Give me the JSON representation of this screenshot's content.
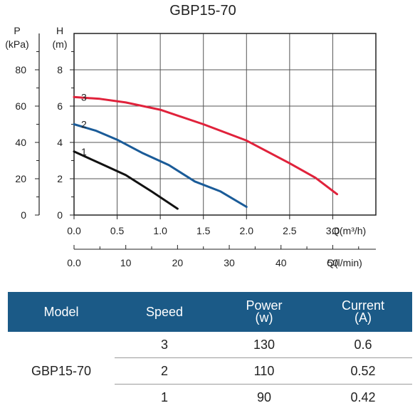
{
  "chart_data": {
    "type": "line",
    "title": "GBP15-70",
    "left_axis_label_line1": "P",
    "left_axis_label_line2": "(kPa)",
    "left_ticks": [
      "0",
      "20",
      "40",
      "60",
      "80"
    ],
    "y_axis_label_line1": "H",
    "y_axis_label_line2": "(m)",
    "y_ticks": [
      "0",
      "2",
      "4",
      "6",
      "8"
    ],
    "ylim": [
      0,
      10
    ],
    "x_axis_label": "Q(m³/h)",
    "x_ticks": [
      "0.0",
      "0.5",
      "1.0",
      "1.5",
      "2.0",
      "2.5",
      "3.0"
    ],
    "xlim": [
      0,
      3.5
    ],
    "x2_axis_label": "Q(l/min)",
    "x2_ticks": [
      "0.0",
      "10",
      "20",
      "30",
      "40",
      "50"
    ],
    "grid": true,
    "series": [
      {
        "name": "1",
        "color": "#111111",
        "points": [
          [
            0,
            3.5
          ],
          [
            0.3,
            2.85
          ],
          [
            0.6,
            2.2
          ],
          [
            0.9,
            1.3
          ],
          [
            1.2,
            0.35
          ]
        ]
      },
      {
        "name": "2",
        "color": "#1a5b98",
        "points": [
          [
            0,
            5.0
          ],
          [
            0.25,
            4.65
          ],
          [
            0.5,
            4.15
          ],
          [
            0.8,
            3.4
          ],
          [
            1.1,
            2.75
          ],
          [
            1.4,
            1.85
          ],
          [
            1.7,
            1.3
          ],
          [
            2.0,
            0.45
          ]
        ]
      },
      {
        "name": "3",
        "color": "#e0223b",
        "points": [
          [
            0,
            6.5
          ],
          [
            0.3,
            6.4
          ],
          [
            0.6,
            6.2
          ],
          [
            1.0,
            5.8
          ],
          [
            1.5,
            5.0
          ],
          [
            2.0,
            4.1
          ],
          [
            2.5,
            2.85
          ],
          [
            2.8,
            2.05
          ],
          [
            3.05,
            1.15
          ]
        ]
      }
    ]
  },
  "table": {
    "headers": {
      "model": "Model",
      "speed": "Speed",
      "power_line1": "Power",
      "power_line2": "(w)",
      "current_line1": "Current",
      "current_line2": "(A)"
    },
    "model": "GBP15-70",
    "rows": [
      {
        "speed": "3",
        "power": "130",
        "current": "0.6"
      },
      {
        "speed": "2",
        "power": "110",
        "current": "0.52"
      },
      {
        "speed": "1",
        "power": "90",
        "current": "0.42"
      }
    ]
  }
}
